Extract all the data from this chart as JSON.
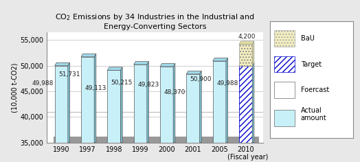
{
  "categories": [
    "1990",
    "1997",
    "1998",
    "1999",
    "2000",
    "2001",
    "2005",
    "2010"
  ],
  "values": [
    49988,
    51731,
    49113,
    50215,
    49823,
    48370,
    50900,
    49988
  ],
  "bau_value": 4200,
  "ylim": [
    35000,
    56500
  ],
  "yticks": [
    35000,
    40000,
    45000,
    50000,
    55000
  ],
  "ylabel": "(10,000 t-CO2)",
  "xlabel": "(Fiscal year)",
  "bar_color_front": "#c8f0f8",
  "bar_color_side": "#7bbccc",
  "bar_color_top": "#a0d8e8",
  "bar_color_2010_hatch_fg": "#0000cc",
  "bar_color_2010_hatch_bg": "#ffffff",
  "bau_color": "#f5f0c0",
  "floor_color": "#999999",
  "background_color": "#e8e8e8",
  "plot_bg": "#ffffff",
  "label_values": [
    "49,988",
    "51,731",
    "49,113",
    "50,215",
    "49,823",
    "48,370",
    "50,900",
    "49,988"
  ],
  "bau_label": "4,200"
}
